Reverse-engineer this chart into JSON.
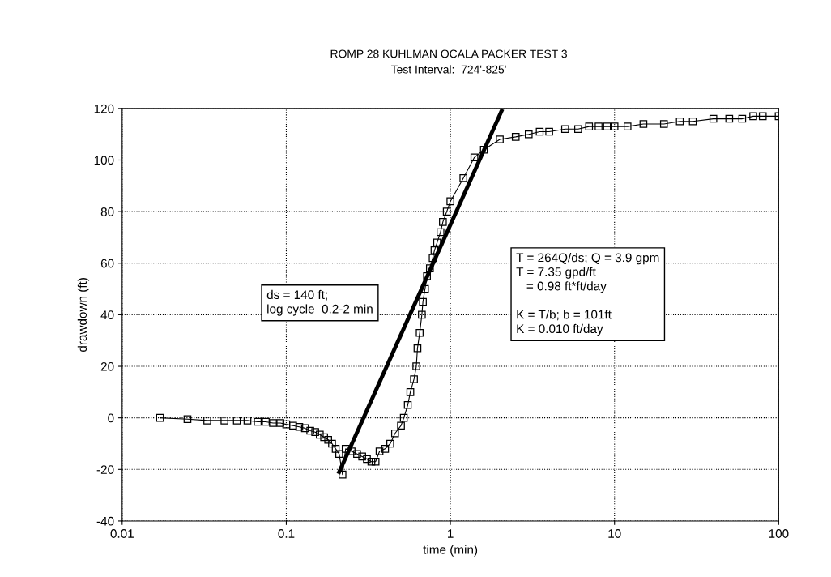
{
  "chart_data": {
    "type": "line",
    "title": "ROMP 28 KUHLMAN OCALA PACKER TEST 3",
    "subtitle": "Test Interval:  724'-825'",
    "xlabel": "time (min)",
    "ylabel": "drawdown (ft)",
    "log": "x",
    "grid": true,
    "legend": false,
    "xlim": [
      0.01,
      100
    ],
    "xticks": [
      0.01,
      0.1,
      1,
      10,
      100
    ],
    "ylim": [
      -40,
      120
    ],
    "yticks": [
      -40,
      -20,
      0,
      20,
      40,
      60,
      80,
      100,
      120
    ],
    "series": [
      {
        "marker": "square",
        "color": "#000000",
        "x": [
          0.017,
          0.025,
          0.033,
          0.042,
          0.05,
          0.058,
          0.067,
          0.075,
          0.083,
          0.092,
          0.1,
          0.11,
          0.12,
          0.13,
          0.14,
          0.15,
          0.16,
          0.17,
          0.18,
          0.19,
          0.2,
          0.21,
          0.22,
          0.23,
          0.25,
          0.27,
          0.29,
          0.31,
          0.33,
          0.35,
          0.37,
          0.4,
          0.43,
          0.46,
          0.5,
          0.52,
          0.55,
          0.57,
          0.6,
          0.62,
          0.63,
          0.65,
          0.67,
          0.68,
          0.7,
          0.72,
          0.75,
          0.78,
          0.8,
          0.83,
          0.87,
          0.9,
          0.95,
          1.0,
          1.2,
          1.4,
          1.6,
          2.0,
          2.5,
          3,
          3.5,
          4,
          5,
          6,
          7,
          8,
          9,
          10,
          12,
          15,
          20,
          25,
          30,
          40,
          50,
          60,
          70,
          80,
          100
        ],
        "values": [
          0,
          -0.5,
          -1,
          -1,
          -1,
          -1,
          -1.5,
          -1.5,
          -2,
          -2,
          -2.5,
          -3,
          -3.5,
          -4,
          -5,
          -5.5,
          -6.5,
          -7.5,
          -8.5,
          -10,
          -12,
          -14,
          -22,
          -12,
          -13,
          -14,
          -15,
          -16,
          -17,
          -17,
          -13,
          -12,
          -10,
          -6,
          -3,
          0,
          5,
          10,
          15,
          20,
          27,
          33,
          40,
          45,
          50,
          55,
          58,
          62,
          65,
          68,
          72,
          76,
          80,
          84,
          93,
          101,
          104,
          108,
          109,
          110,
          111,
          111,
          112,
          112,
          113,
          113,
          113,
          113,
          113,
          114,
          114,
          115,
          115,
          116,
          116,
          116,
          117,
          117,
          117
        ]
      },
      {
        "marker": "none",
        "color": "#000000",
        "x": [
          0.21,
          2.05
        ],
        "values": [
          -21,
          119
        ]
      }
    ],
    "annotations": [
      "ds = 140 ft;\nlog cycle  0.2-2 min",
      "T = 264Q/ds; Q = 3.9 gpm\nT = 7.35 gpd/ft\n   = 0.98 ft*ft/day\n\nK = T/b; b = 101ft\nK = 0.010 ft/day"
    ]
  }
}
